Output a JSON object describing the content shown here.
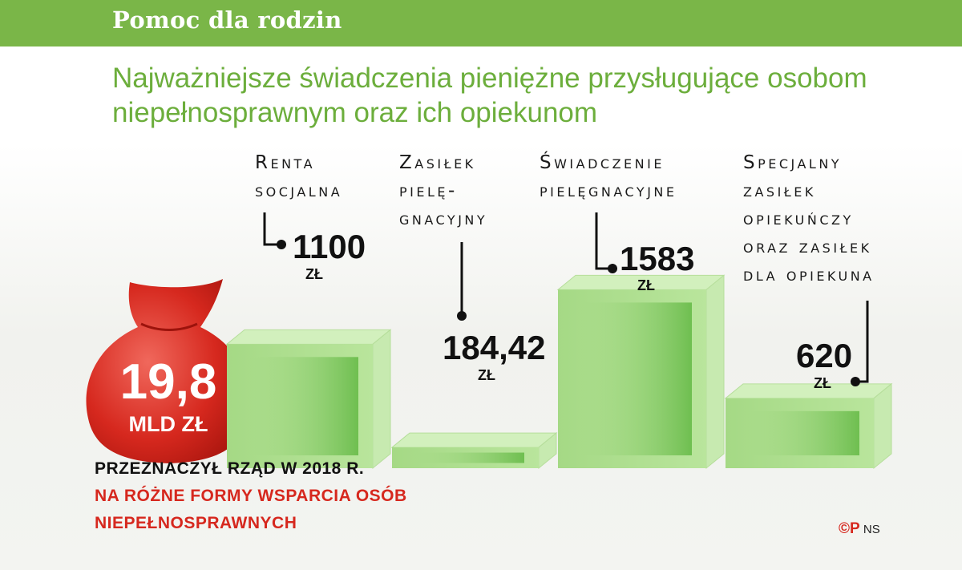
{
  "header": {
    "title": "Pomoc dla rodzin"
  },
  "subtitle": "Najważniejsze świadczenia pieniężne przysługujące osobom niepełnosprawnym oraz ich opiekunom",
  "chart_data": {
    "type": "bar",
    "categories": [
      [
        "Renta",
        "socjalna"
      ],
      [
        "Zasiłek",
        "pielę-",
        "gnacyjny"
      ],
      [
        "Świadczenie",
        "pielęgnacyjne"
      ],
      [
        "Specjalny",
        "zasiłek",
        "opiekuńczy",
        "oraz zasiłek",
        "dla opiekuna"
      ]
    ],
    "values": [
      1100,
      184.42,
      1583,
      620
    ],
    "value_labels": [
      "1100",
      "184,42",
      "1583",
      "620"
    ],
    "unit": "zł",
    "colors": {
      "bar_front": "#a9dc8a",
      "bar_top": "#d2f0bd",
      "bar_side": "#c7eab0",
      "bar_shade": "#6ec04d"
    }
  },
  "highlight": {
    "value": "19,8",
    "unit": "mld zł",
    "color": "#d6281e",
    "caption_line1": "PRZEZNACZYŁ RZĄD W 2018 R.",
    "caption_line2": "NA RÓŻNE FORMY WSPARCIA OSÓB NIEPEŁNOSPRAWNYCH"
  },
  "credit": {
    "mark": "©P",
    "initials": "NS"
  }
}
